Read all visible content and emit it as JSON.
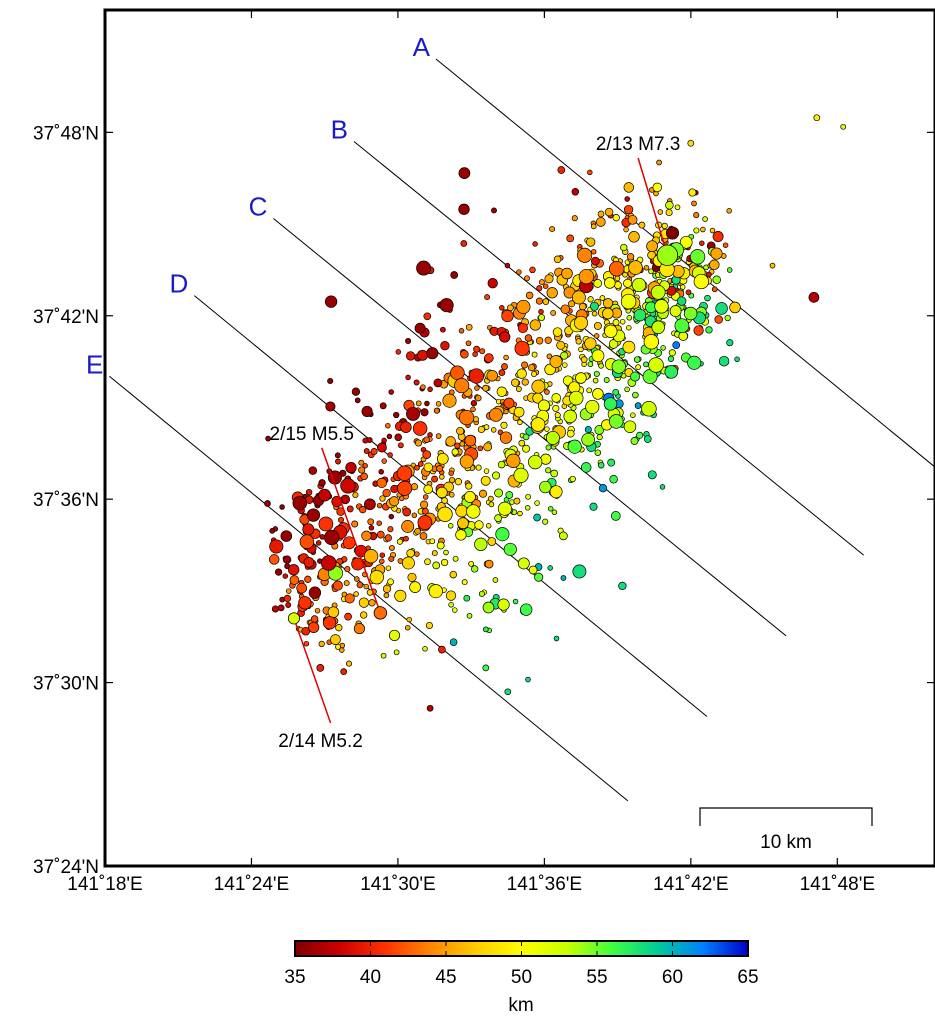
{
  "map": {
    "lon_range": [
      141.3,
      141.8667
    ],
    "lat_range": [
      37.4,
      37.8667
    ],
    "lon_ticks": [
      {
        "value": 141.3,
        "label": "141˚18'E"
      },
      {
        "value": 141.4,
        "label": "141˚24'E"
      },
      {
        "value": 141.5,
        "label": "141˚30'E"
      },
      {
        "value": 141.6,
        "label": "141˚36'E"
      },
      {
        "value": 141.7,
        "label": "141˚42'E"
      },
      {
        "value": 141.8,
        "label": "141˚48'E"
      }
    ],
    "lat_ticks": [
      {
        "value": 37.4,
        "label": "37˚24'N"
      },
      {
        "value": 37.5,
        "label": "37˚30'N"
      },
      {
        "value": 37.6,
        "label": "37˚36'N"
      },
      {
        "value": 37.7,
        "label": "37˚42'N"
      },
      {
        "value": 37.8,
        "label": "37˚48'N"
      }
    ],
    "profiles": [
      {
        "label": "A",
        "start": [
          141.526,
          37.84
        ],
        "end": [
          141.8667,
          37.6175
        ]
      },
      {
        "label": "B",
        "start": [
          141.47,
          37.795
        ],
        "end": [
          141.818,
          37.5695
        ]
      },
      {
        "label": "C",
        "start": [
          141.415,
          37.753
        ],
        "end": [
          141.765,
          37.5255
        ]
      },
      {
        "label": "D",
        "start": [
          141.361,
          37.711
        ],
        "end": [
          141.711,
          37.4815
        ]
      },
      {
        "label": "E",
        "start": [
          141.303,
          37.667
        ],
        "end": [
          141.657,
          37.4355
        ]
      }
    ],
    "annotations": [
      {
        "label": "2/13 M7.3",
        "lon": 141.684,
        "lat": 37.733,
        "mag": 7.3,
        "depth": 54,
        "line_to": [
          141.664,
          37.786
        ]
      },
      {
        "label": "2/15 M5.5",
        "lon": 141.488,
        "lat": 37.538,
        "mag": 5.5,
        "depth": 43,
        "line_to": [
          141.448,
          37.628
        ]
      },
      {
        "label": "2/14 M5.2",
        "lon": 141.429,
        "lat": 37.535,
        "mag": 5.2,
        "depth": 52,
        "line_to": [
          141.454,
          37.478
        ]
      }
    ],
    "scale_bar": {
      "label": "10 km",
      "km": 10
    }
  },
  "colorbar": {
    "min": 35,
    "max": 65,
    "ticks": [
      "35",
      "40",
      "45",
      "50",
      "55",
      "60",
      "65"
    ],
    "unit": "km",
    "stops": [
      "#800000",
      "#cc0000",
      "#ff3300",
      "#ff8800",
      "#ffcc00",
      "#ffff00",
      "#c8ff00",
      "#40ff40",
      "#00cc99",
      "#0080ff",
      "#0000cc"
    ]
  },
  "events_note": "Scattered hypocenters (circles) are generated procedurally inside the script to reproduce the aftershock cloud."
}
